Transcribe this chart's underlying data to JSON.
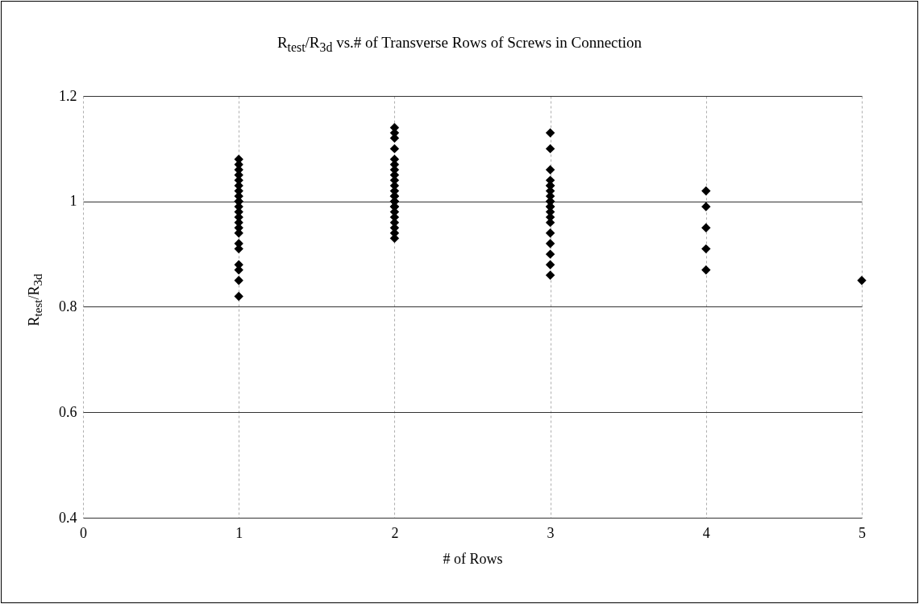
{
  "chart_data": {
    "type": "scatter",
    "title": "R$_{test}$/R$_{3d}$  vs.# of Transverse Rows of Screws in Connection",
    "xlabel": "# of Rows",
    "ylabel": "R$_{test}$/R$_{3d}$",
    "x": [
      1,
      1,
      1,
      1,
      1,
      1,
      1,
      1,
      1,
      1,
      1,
      1,
      1,
      1,
      1,
      1,
      1,
      1,
      1,
      1,
      1,
      1,
      2,
      2,
      2,
      2,
      2,
      2,
      2,
      2,
      2,
      2,
      2,
      2,
      2,
      2,
      2,
      2,
      2,
      2,
      2,
      2,
      2,
      2,
      2,
      3,
      3,
      3,
      3,
      3,
      3,
      3,
      3,
      3,
      3,
      3,
      3,
      3,
      3,
      3,
      3,
      3,
      3,
      3,
      3,
      4,
      4,
      4,
      4,
      4,
      5
    ],
    "values": [
      1.08,
      1.07,
      1.06,
      1.05,
      1.04,
      1.03,
      1.02,
      1.01,
      1.0,
      0.99,
      0.98,
      0.97,
      0.96,
      0.95,
      0.94,
      0.92,
      0.91,
      0.88,
      0.87,
      0.85,
      0.82,
      1.0,
      1.14,
      1.13,
      1.12,
      1.1,
      1.08,
      1.07,
      1.06,
      1.05,
      1.04,
      1.03,
      1.02,
      1.01,
      1.0,
      0.99,
      0.98,
      0.97,
      0.96,
      0.95,
      0.94,
      0.93,
      1.0,
      0.99,
      1.01,
      1.13,
      1.1,
      1.06,
      1.04,
      1.03,
      1.02,
      1.01,
      1.0,
      0.99,
      0.98,
      0.97,
      0.96,
      0.94,
      0.92,
      0.9,
      0.88,
      0.86,
      1.0,
      0.99,
      1.03,
      1.02,
      0.99,
      0.95,
      0.91,
      0.87,
      0.85
    ],
    "color": "#000000",
    "marker": "diamond",
    "xlim": [
      0,
      5
    ],
    "xticks": [
      0,
      1,
      2,
      3,
      4,
      5
    ],
    "ylim": [
      0.4,
      1.2
    ],
    "yticks": [
      0.4,
      0.6,
      0.8,
      1,
      1.2
    ],
    "grid": true
  }
}
